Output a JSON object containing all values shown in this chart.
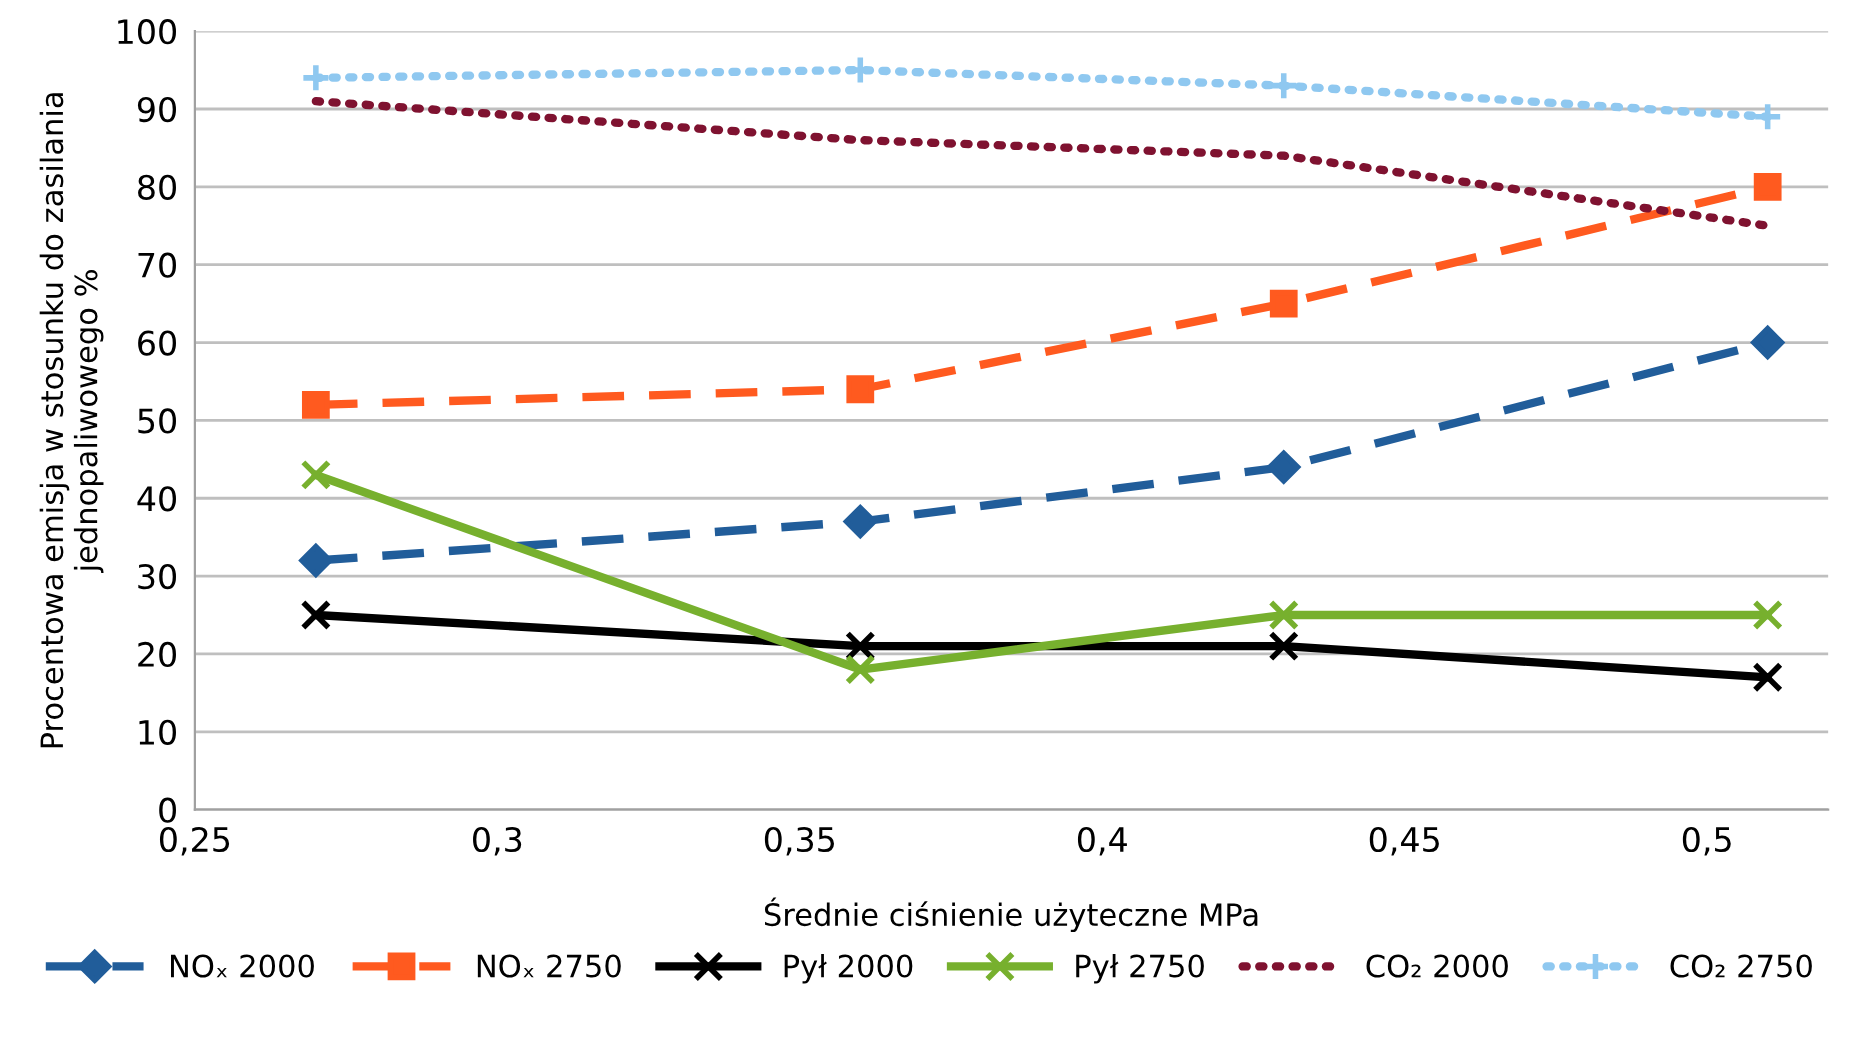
{
  "chart_data": {
    "type": "line",
    "xlabel": "Średnie ciśnienie użyteczne MPa",
    "ylabel": "Procentowa emisja w stosunku do zasilania\njednopaliwowego %",
    "x": [
      0.27,
      0.36,
      0.43,
      0.51
    ],
    "series": [
      {
        "name": "NOₓ 2000",
        "color": "#215d9a",
        "values": [
          32,
          37,
          44,
          60
        ],
        "marker": "diamond",
        "line_style": "dashed"
      },
      {
        "name": "NOₓ 2750",
        "color": "#ff5a1f",
        "values": [
          52,
          54,
          65,
          80
        ],
        "marker": "square",
        "line_style": "dashed"
      },
      {
        "name": "Pył 2000",
        "color": "#000000",
        "values": [
          25,
          21,
          21,
          17
        ],
        "marker": "cross",
        "line_style": "solid"
      },
      {
        "name": "Pył 2750",
        "color": "#77b02e",
        "values": [
          43,
          18,
          25,
          25
        ],
        "marker": "cross",
        "line_style": "solid"
      },
      {
        "name": "CO₂ 2000",
        "color": "#7f1230",
        "values": [
          91,
          86,
          84,
          75
        ],
        "marker": "none",
        "line_style": "dotted"
      },
      {
        "name": "CO₂ 2750",
        "color": "#8fc8f0",
        "values": [
          94,
          95,
          93,
          89
        ],
        "marker": "plus",
        "line_style": "dotted"
      }
    ],
    "xlim": [
      0.25,
      0.52
    ],
    "xticks": [
      {
        "value": 0.25,
        "label": "0,25"
      },
      {
        "value": 0.3,
        "label": "0,3"
      },
      {
        "value": 0.35,
        "label": "0,35"
      },
      {
        "value": 0.4,
        "label": "0,4"
      },
      {
        "value": 0.45,
        "label": "0,45"
      },
      {
        "value": 0.5,
        "label": "0,5"
      }
    ],
    "ylim": [
      0,
      100
    ],
    "yticks": [
      0,
      10,
      20,
      30,
      40,
      50,
      60,
      70,
      80,
      90,
      100
    ],
    "grid": "y",
    "legend": "bottom"
  }
}
